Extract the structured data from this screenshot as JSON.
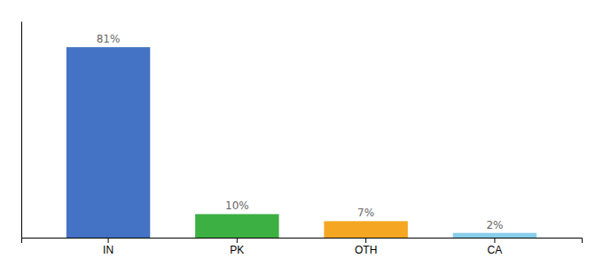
{
  "chart_data": {
    "type": "bar",
    "categories": [
      "IN",
      "PK",
      "OTH",
      "CA"
    ],
    "values": [
      81,
      10,
      7,
      2
    ],
    "value_labels": [
      "81%",
      "10%",
      "7%",
      "2%"
    ],
    "data_labels": true,
    "colors": [
      "#4472c4",
      "#3cb043",
      "#f5a623",
      "#87ceeb"
    ],
    "ylim": [
      0,
      92
    ],
    "tick_labels": "x",
    "grid": false
  }
}
